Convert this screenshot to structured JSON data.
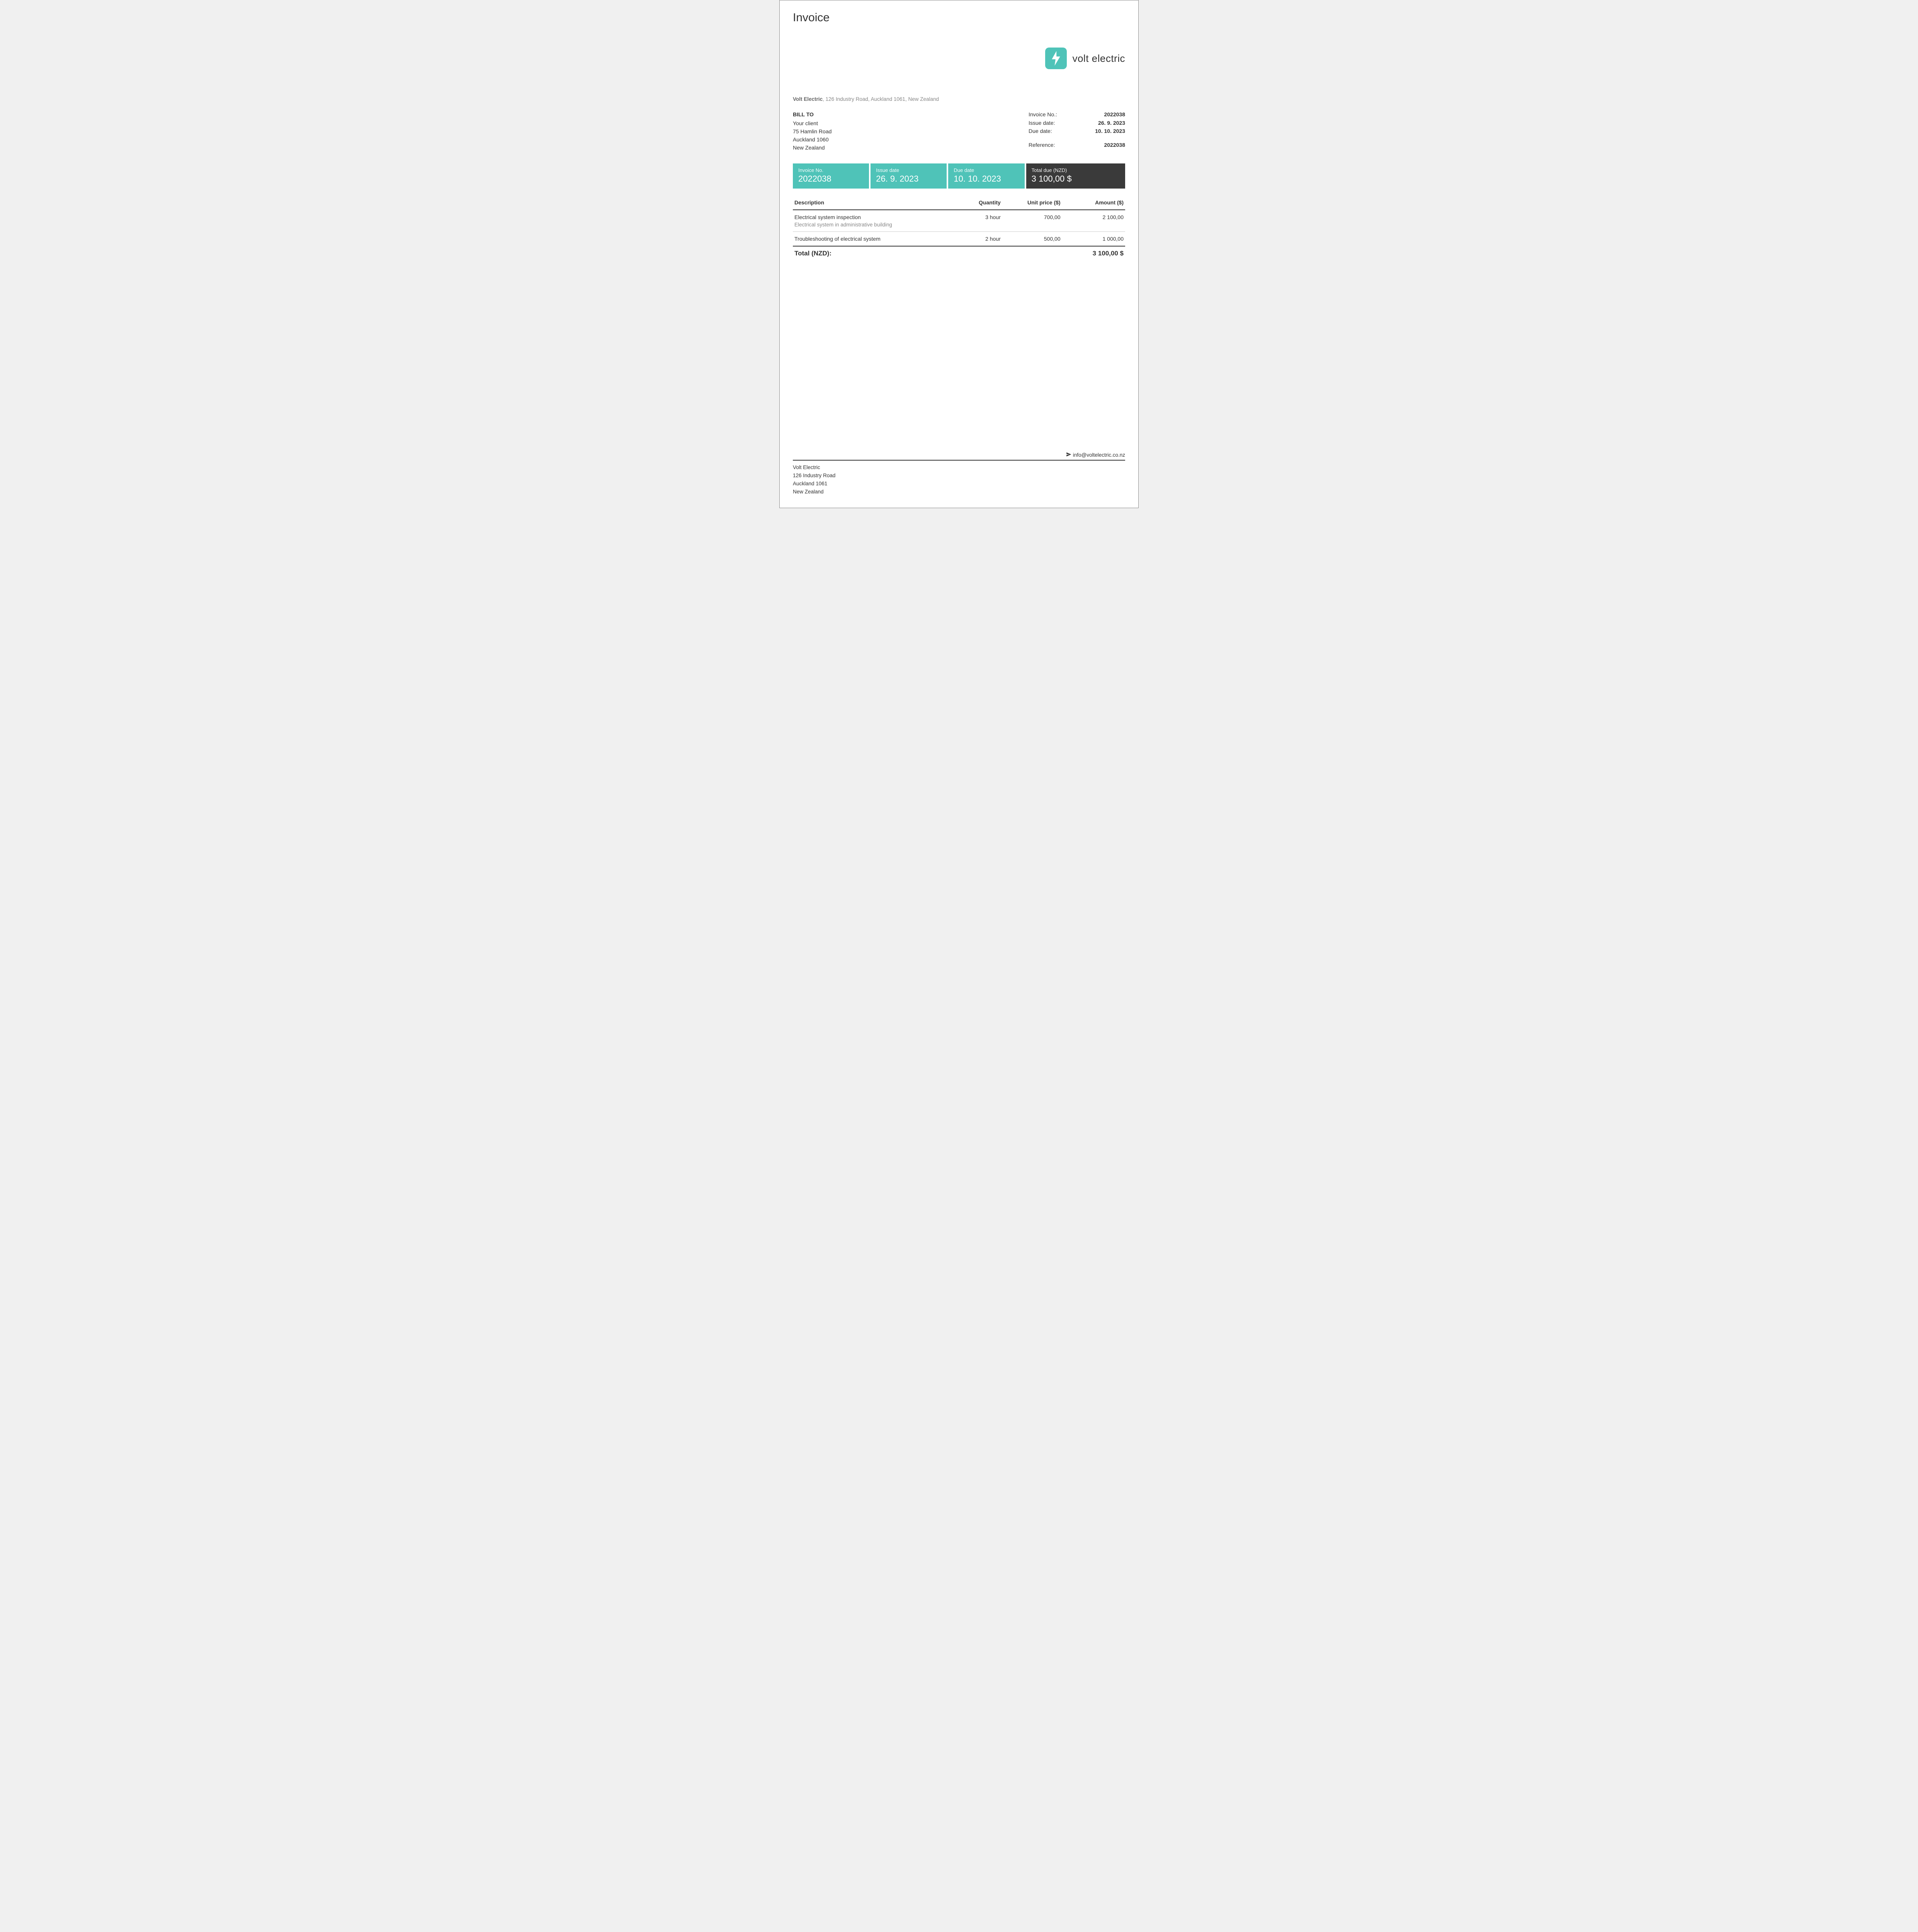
{
  "colors": {
    "accent": "#4fc3b8",
    "dark": "#3a3a3a",
    "page_bg": "#ffffff",
    "text": "#333333",
    "muted": "#888888",
    "rule": "#333333"
  },
  "document": {
    "title": "Invoice"
  },
  "brand": {
    "name": "volt electric",
    "badge_color": "#4fc3b8"
  },
  "sender": {
    "company": "Volt Electric",
    "address_inline": "126 Industry Road, Auckland 1061, New Zealand",
    "footer_lines": [
      "Volt Electric",
      "126 Industry Road",
      "Auckland 1061",
      "New Zealand"
    ],
    "email": "info@voltelectric.co.nz"
  },
  "bill_to": {
    "heading": "BILL TO",
    "lines": [
      "Your client",
      "75 Hamlin Road",
      "Auckland 1060",
      "New Zealand"
    ]
  },
  "meta": {
    "labels": {
      "invoice_no": "Invoice No.:",
      "issue_date": "Issue date:",
      "due_date": "Due date:",
      "reference": "Reference:"
    },
    "invoice_no": "2022038",
    "issue_date": "26. 9. 2023",
    "due_date": "10. 10. 2023",
    "reference": "2022038"
  },
  "summary": {
    "cells": [
      {
        "label": "Invoice No.",
        "value": "2022038",
        "bg": "#4fc3b8"
      },
      {
        "label": "Issue date",
        "value": "26. 9. 2023",
        "bg": "#4fc3b8"
      },
      {
        "label": "Due date",
        "value": "10. 10. 2023",
        "bg": "#4fc3b8"
      },
      {
        "label": "Total due (NZD)",
        "value": "3 100,00 $",
        "bg": "#3a3a3a",
        "dark": true
      }
    ]
  },
  "table": {
    "headers": {
      "description": "Description",
      "quantity": "Quantity",
      "unit_price": "Unit price ($)",
      "amount": "Amount ($)"
    },
    "rows": [
      {
        "description": "Electrical system inspection",
        "note": "Electrical system in administrative building",
        "quantity": "3 hour",
        "unit_price": "700,00",
        "amount": "2 100,00"
      },
      {
        "description": "Troubleshooting of electrical system",
        "note": "",
        "quantity": "2 hour",
        "unit_price": "500,00",
        "amount": "1 000,00"
      }
    ],
    "total_label": "Total (NZD):",
    "total_value": "3 100,00 $"
  }
}
